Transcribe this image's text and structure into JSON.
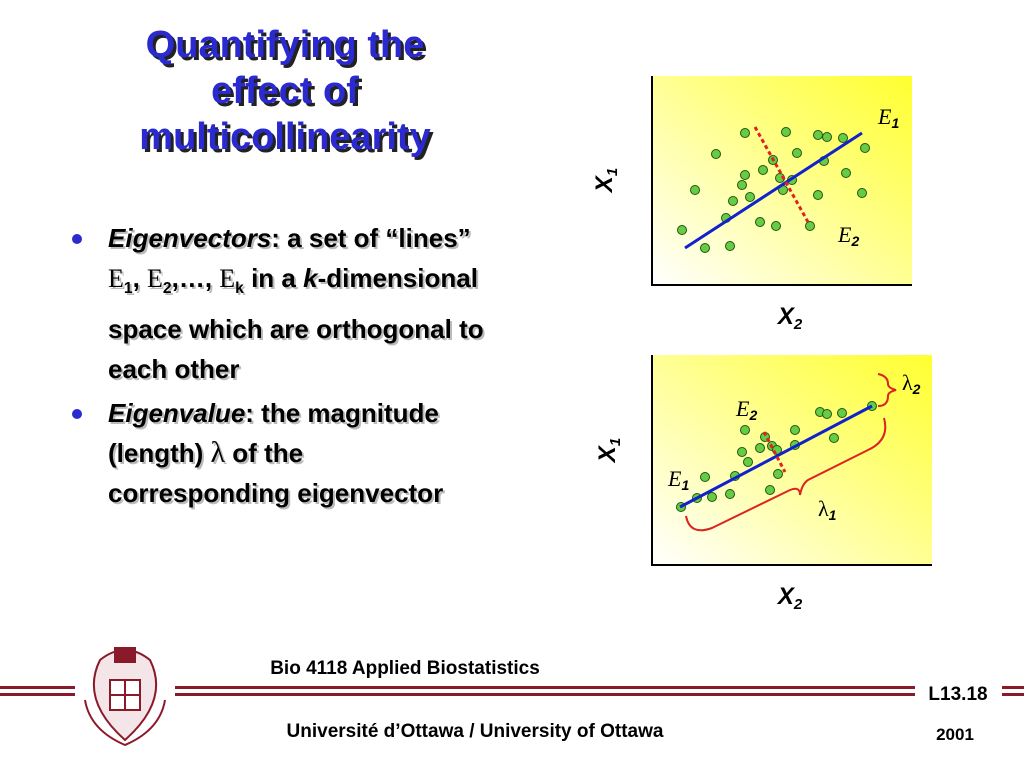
{
  "title": [
    "Quantifying the",
    "effect of",
    "multicollinearity"
  ],
  "bullets": [
    {
      "term": "Eigenvectors",
      "text1": ": a set of “lines” ",
      "e1": "E",
      "e1_sub": "1",
      "sep1": ", ",
      "e2": "E",
      "e2_sub": "2",
      "sep2": ",…, ",
      "ek": "E",
      "ek_sub": "k",
      "text2": " in a ",
      "k": "k",
      "text3": "-dimensional space which are orthogonal to each other"
    },
    {
      "term": "Eigenvalue",
      "text1": ": the magnitude (length) ",
      "lambda": "λ",
      "text2": " of the corresponding eigenvector"
    }
  ],
  "plot1": {
    "y_label": "X",
    "y_sub": "1",
    "x_label": "X",
    "x_sub": "2",
    "e1": "E",
    "e1_sub": "1",
    "e2": "E",
    "e2_sub": "2"
  },
  "plot2": {
    "y_label": "X",
    "y_sub": "1",
    "x_label": "X",
    "x_sub": "2",
    "e1": "E",
    "e1_sub": "1",
    "e2": "E",
    "e2_sub": "2",
    "l1": "λ",
    "l1_sub": "1",
    "l2": "λ",
    "l2_sub": "2"
  },
  "footer": {
    "course": "Bio 4118 Applied Biostatistics",
    "slide": "L13.18",
    "university": "Université d’Ottawa / University of Ottawa",
    "year": "2001"
  }
}
